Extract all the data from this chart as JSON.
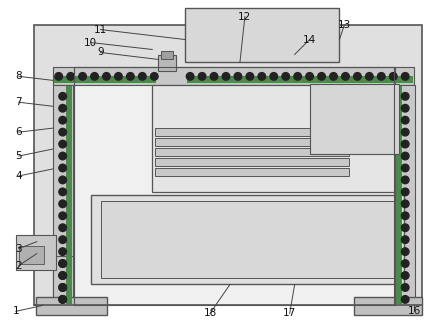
{
  "outer_bg": "#e8e8e8",
  "inner_bg": "#f5f5f5",
  "rail_color": "#c0c0c0",
  "green_color": "#4a8a4a",
  "dot_color": "#222222",
  "box_color": "#d0d0d0",
  "line_color": "#555555",
  "lw_main": 1.2,
  "lw_thin": 0.7,
  "label_fs": 7.5
}
